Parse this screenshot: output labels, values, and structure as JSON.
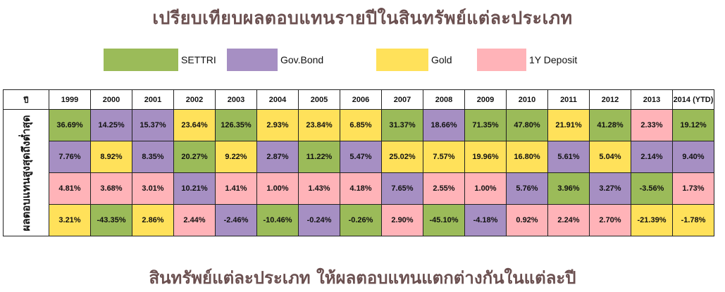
{
  "title": "เปรียบเทียบผลตอบแทนรายปีในสินทรัพย์แต่ละประเภท",
  "subtitle": "สินทรัพย์แต่ละประเภท ให้ผลตอบแทนแตกต่างกันในแต่ละปี",
  "colors": {
    "SETTRI": "#9bbb59",
    "Gov.Bond": "#a68fc3",
    "Gold": "#ffe15a",
    "1Y Deposit": "#ffb3b8"
  },
  "chart_data": {
    "type": "table",
    "title": "เปรียบเทียบผลตอบแทนรายปีในสินทรัพย์แต่ละประเภท",
    "legend": [
      "SETTRI",
      "Gov.Bond",
      "Gold",
      "1Y Deposit"
    ],
    "corner_label": "ปี",
    "row_axis_label": "ผลตอบแทนสูงสุดถึงต่ำสุด",
    "columns": [
      "1999",
      "2000",
      "2001",
      "2002",
      "2003",
      "2004",
      "2005",
      "2006",
      "2007",
      "2008",
      "2009",
      "2010",
      "2011",
      "2012",
      "2013",
      "2014 (YTD)"
    ],
    "rows": [
      [
        {
          "value": "36.69%",
          "asset": "SETTRI"
        },
        {
          "value": "14.25%",
          "asset": "Gov.Bond"
        },
        {
          "value": "15.37%",
          "asset": "Gov.Bond"
        },
        {
          "value": "23.64%",
          "asset": "Gold"
        },
        {
          "value": "126.35%",
          "asset": "SETTRI"
        },
        {
          "value": "2.93%",
          "asset": "Gold"
        },
        {
          "value": "23.84%",
          "asset": "Gold"
        },
        {
          "value": "6.85%",
          "asset": "Gold"
        },
        {
          "value": "31.37%",
          "asset": "SETTRI"
        },
        {
          "value": "18.66%",
          "asset": "Gov.Bond"
        },
        {
          "value": "71.35%",
          "asset": "SETTRI"
        },
        {
          "value": "47.80%",
          "asset": "SETTRI"
        },
        {
          "value": "21.91%",
          "asset": "Gold"
        },
        {
          "value": "41.28%",
          "asset": "SETTRI"
        },
        {
          "value": "2.33%",
          "asset": "1Y Deposit"
        },
        {
          "value": "19.12%",
          "asset": "SETTRI"
        }
      ],
      [
        {
          "value": "7.76%",
          "asset": "Gov.Bond"
        },
        {
          "value": "8.92%",
          "asset": "Gold"
        },
        {
          "value": "8.35%",
          "asset": "Gov.Bond"
        },
        {
          "value": "20.27%",
          "asset": "SETTRI"
        },
        {
          "value": "9.22%",
          "asset": "Gold"
        },
        {
          "value": "2.87%",
          "asset": "Gov.Bond"
        },
        {
          "value": "11.22%",
          "asset": "SETTRI"
        },
        {
          "value": "5.47%",
          "asset": "Gov.Bond"
        },
        {
          "value": "25.02%",
          "asset": "Gold"
        },
        {
          "value": "7.57%",
          "asset": "Gold"
        },
        {
          "value": "19.96%",
          "asset": "Gold"
        },
        {
          "value": "16.80%",
          "asset": "Gold"
        },
        {
          "value": "5.61%",
          "asset": "Gov.Bond"
        },
        {
          "value": "5.04%",
          "asset": "Gold"
        },
        {
          "value": "2.14%",
          "asset": "Gov.Bond"
        },
        {
          "value": "9.40%",
          "asset": "Gov.Bond"
        }
      ],
      [
        {
          "value": "4.81%",
          "asset": "1Y Deposit"
        },
        {
          "value": "3.68%",
          "asset": "1Y Deposit"
        },
        {
          "value": "3.01%",
          "asset": "1Y Deposit"
        },
        {
          "value": "10.21%",
          "asset": "Gov.Bond"
        },
        {
          "value": "1.41%",
          "asset": "1Y Deposit"
        },
        {
          "value": "1.00%",
          "asset": "1Y Deposit"
        },
        {
          "value": "1.43%",
          "asset": "1Y Deposit"
        },
        {
          "value": "4.18%",
          "asset": "1Y Deposit"
        },
        {
          "value": "7.65%",
          "asset": "Gov.Bond"
        },
        {
          "value": "2.55%",
          "asset": "1Y Deposit"
        },
        {
          "value": "1.00%",
          "asset": "1Y Deposit"
        },
        {
          "value": "5.76%",
          "asset": "Gov.Bond"
        },
        {
          "value": "3.96%",
          "asset": "SETTRI"
        },
        {
          "value": "3.27%",
          "asset": "Gov.Bond"
        },
        {
          "value": "-3.56%",
          "asset": "SETTRI"
        },
        {
          "value": "1.73%",
          "asset": "1Y Deposit"
        }
      ],
      [
        {
          "value": "3.21%",
          "asset": "Gold"
        },
        {
          "value": "-43.35%",
          "asset": "SETTRI"
        },
        {
          "value": "2.86%",
          "asset": "Gold"
        },
        {
          "value": "2.44%",
          "asset": "1Y Deposit"
        },
        {
          "value": "-2.46%",
          "asset": "Gov.Bond"
        },
        {
          "value": "-10.46%",
          "asset": "SETTRI"
        },
        {
          "value": "-0.24%",
          "asset": "Gov.Bond"
        },
        {
          "value": "-0.26%",
          "asset": "SETTRI"
        },
        {
          "value": "2.90%",
          "asset": "1Y Deposit"
        },
        {
          "value": "-45.10%",
          "asset": "SETTRI"
        },
        {
          "value": "-4.18%",
          "asset": "Gov.Bond"
        },
        {
          "value": "0.92%",
          "asset": "1Y Deposit"
        },
        {
          "value": "2.24%",
          "asset": "1Y Deposit"
        },
        {
          "value": "2.70%",
          "asset": "1Y Deposit"
        },
        {
          "value": "-21.39%",
          "asset": "Gold"
        },
        {
          "value": "-1.78%",
          "asset": "Gold"
        }
      ]
    ]
  }
}
